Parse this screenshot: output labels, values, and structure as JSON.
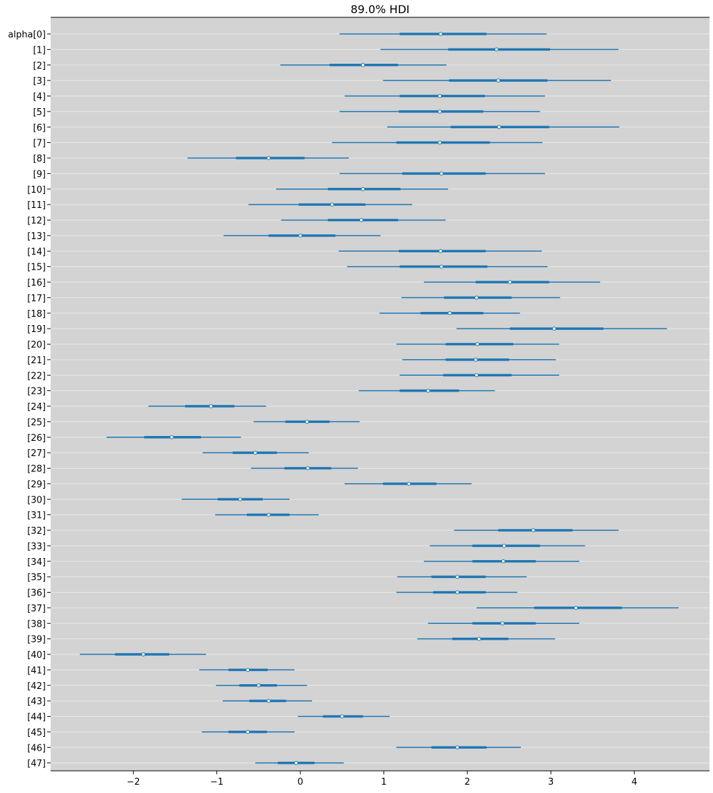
{
  "chart_data": {
    "type": "forest",
    "title": "89.0% HDI",
    "xlabel": "",
    "ylabel": "",
    "xlim": [
      -2.99,
      4.9
    ],
    "xticks": [
      -2,
      -1,
      0,
      1,
      2,
      3,
      4
    ],
    "xtick_labels": [
      "−2",
      "−1",
      "0",
      "1",
      "2",
      "3",
      "4"
    ],
    "grid": "horizontal",
    "legend": "none",
    "colors": {
      "plot_bg": "#d3d3d3",
      "hdi_line": "#1f77b4",
      "median_marker": "#ffffff",
      "grid": "#e8e8e8"
    },
    "rows": [
      {
        "label": "alpha[0]",
        "median": 1.68,
        "hdi_low": 0.47,
        "hdi_high": 2.95,
        "q25": 1.19,
        "q75": 2.23
      },
      {
        "label": "[1]",
        "median": 2.35,
        "hdi_low": 0.96,
        "hdi_high": 3.81,
        "q25": 1.77,
        "q75": 2.99
      },
      {
        "label": "[2]",
        "median": 0.75,
        "hdi_low": -0.24,
        "hdi_high": 1.75,
        "q25": 0.35,
        "q75": 1.17
      },
      {
        "label": "[3]",
        "median": 2.37,
        "hdi_low": 0.99,
        "hdi_high": 3.72,
        "q25": 1.78,
        "q75": 2.96
      },
      {
        "label": "[4]",
        "median": 1.67,
        "hdi_low": 0.53,
        "hdi_high": 2.93,
        "q25": 1.19,
        "q75": 2.21
      },
      {
        "label": "[5]",
        "median": 1.67,
        "hdi_low": 0.47,
        "hdi_high": 2.87,
        "q25": 1.18,
        "q75": 2.19
      },
      {
        "label": "[6]",
        "median": 2.38,
        "hdi_low": 1.04,
        "hdi_high": 3.82,
        "q25": 1.8,
        "q75": 2.98
      },
      {
        "label": "[7]",
        "median": 1.67,
        "hdi_low": 0.38,
        "hdi_high": 2.9,
        "q25": 1.15,
        "q75": 2.27
      },
      {
        "label": "[8]",
        "median": -0.38,
        "hdi_low": -1.35,
        "hdi_high": 0.58,
        "q25": -0.77,
        "q75": 0.05
      },
      {
        "label": "[9]",
        "median": 1.69,
        "hdi_low": 0.47,
        "hdi_high": 2.93,
        "q25": 1.22,
        "q75": 2.22
      },
      {
        "label": "[10]",
        "median": 0.75,
        "hdi_low": -0.29,
        "hdi_high": 1.77,
        "q25": 0.33,
        "q75": 1.2
      },
      {
        "label": "[11]",
        "median": 0.38,
        "hdi_low": -0.62,
        "hdi_high": 1.34,
        "q25": -0.02,
        "q75": 0.78
      },
      {
        "label": "[12]",
        "median": 0.73,
        "hdi_low": -0.23,
        "hdi_high": 1.74,
        "q25": 0.33,
        "q75": 1.17
      },
      {
        "label": "[13]",
        "median": 0.0,
        "hdi_low": -0.92,
        "hdi_high": 0.96,
        "q25": -0.38,
        "q75": 0.42
      },
      {
        "label": "[14]",
        "median": 1.68,
        "hdi_low": 0.46,
        "hdi_high": 2.89,
        "q25": 1.18,
        "q75": 2.22
      },
      {
        "label": "[15]",
        "median": 1.69,
        "hdi_low": 0.56,
        "hdi_high": 2.96,
        "q25": 1.19,
        "q75": 2.24
      },
      {
        "label": "[16]",
        "median": 2.51,
        "hdi_low": 1.48,
        "hdi_high": 3.59,
        "q25": 2.1,
        "q75": 2.98
      },
      {
        "label": "[17]",
        "median": 2.11,
        "hdi_low": 1.21,
        "hdi_high": 3.11,
        "q25": 1.72,
        "q75": 2.53
      },
      {
        "label": "[18]",
        "median": 1.79,
        "hdi_low": 0.95,
        "hdi_high": 2.63,
        "q25": 1.44,
        "q75": 2.19
      },
      {
        "label": "[19]",
        "median": 3.04,
        "hdi_low": 1.87,
        "hdi_high": 4.39,
        "q25": 2.51,
        "q75": 3.63
      },
      {
        "label": "[20]",
        "median": 2.12,
        "hdi_low": 1.15,
        "hdi_high": 3.1,
        "q25": 1.74,
        "q75": 2.55
      },
      {
        "label": "[21]",
        "median": 2.1,
        "hdi_low": 1.22,
        "hdi_high": 3.06,
        "q25": 1.74,
        "q75": 2.5
      },
      {
        "label": "[22]",
        "median": 2.11,
        "hdi_low": 1.19,
        "hdi_high": 3.1,
        "q25": 1.71,
        "q75": 2.53
      },
      {
        "label": "[23]",
        "median": 1.53,
        "hdi_low": 0.7,
        "hdi_high": 2.33,
        "q25": 1.19,
        "q75": 1.9
      },
      {
        "label": "[24]",
        "median": -1.07,
        "hdi_low": -1.82,
        "hdi_high": -0.41,
        "q25": -1.38,
        "q75": -0.79
      },
      {
        "label": "[25]",
        "median": 0.08,
        "hdi_low": -0.56,
        "hdi_high": 0.71,
        "q25": -0.18,
        "q75": 0.35
      },
      {
        "label": "[26]",
        "median": -1.54,
        "hdi_low": -2.32,
        "hdi_high": -0.71,
        "q25": -1.87,
        "q75": -1.19
      },
      {
        "label": "[27]",
        "median": -0.54,
        "hdi_low": -1.17,
        "hdi_high": 0.1,
        "q25": -0.81,
        "q75": -0.28
      },
      {
        "label": "[28]",
        "median": 0.09,
        "hdi_low": -0.59,
        "hdi_high": 0.69,
        "q25": -0.19,
        "q75": 0.37
      },
      {
        "label": "[29]",
        "median": 1.3,
        "hdi_low": 0.53,
        "hdi_high": 2.05,
        "q25": 0.99,
        "q75": 1.63
      },
      {
        "label": "[30]",
        "median": -0.72,
        "hdi_low": -1.42,
        "hdi_high": -0.13,
        "q25": -0.99,
        "q75": -0.45
      },
      {
        "label": "[31]",
        "median": -0.38,
        "hdi_low": -1.02,
        "hdi_high": 0.22,
        "q25": -0.64,
        "q75": -0.13
      },
      {
        "label": "[32]",
        "median": 2.79,
        "hdi_low": 1.84,
        "hdi_high": 3.81,
        "q25": 2.37,
        "q75": 3.26
      },
      {
        "label": "[33]",
        "median": 2.44,
        "hdi_low": 1.55,
        "hdi_high": 3.41,
        "q25": 2.06,
        "q75": 2.87
      },
      {
        "label": "[34]",
        "median": 2.43,
        "hdi_low": 1.48,
        "hdi_high": 3.34,
        "q25": 2.06,
        "q75": 2.82
      },
      {
        "label": "[35]",
        "median": 1.88,
        "hdi_low": 1.16,
        "hdi_high": 2.71,
        "q25": 1.57,
        "q75": 2.22
      },
      {
        "label": "[36]",
        "median": 1.88,
        "hdi_low": 1.15,
        "hdi_high": 2.6,
        "q25": 1.59,
        "q75": 2.22
      },
      {
        "label": "[37]",
        "median": 3.3,
        "hdi_low": 2.11,
        "hdi_high": 4.53,
        "q25": 2.8,
        "q75": 3.85
      },
      {
        "label": "[38]",
        "median": 2.42,
        "hdi_low": 1.53,
        "hdi_high": 3.34,
        "q25": 2.06,
        "q75": 2.82
      },
      {
        "label": "[39]",
        "median": 2.14,
        "hdi_low": 1.4,
        "hdi_high": 3.05,
        "q25": 1.82,
        "q75": 2.49
      },
      {
        "label": "[40]",
        "median": -1.88,
        "hdi_low": -2.64,
        "hdi_high": -1.13,
        "q25": -2.22,
        "q75": -1.57
      },
      {
        "label": "[41]",
        "median": -0.63,
        "hdi_low": -1.21,
        "hdi_high": -0.07,
        "q25": -0.86,
        "q75": -0.39
      },
      {
        "label": "[42]",
        "median": -0.5,
        "hdi_low": -1.01,
        "hdi_high": 0.08,
        "q25": -0.73,
        "q75": -0.28
      },
      {
        "label": "[43]",
        "median": -0.38,
        "hdi_low": -0.93,
        "hdi_high": 0.14,
        "q25": -0.61,
        "q75": -0.17
      },
      {
        "label": "[44]",
        "median": 0.5,
        "hdi_low": -0.03,
        "hdi_high": 1.07,
        "q25": 0.27,
        "q75": 0.75
      },
      {
        "label": "[45]",
        "median": -0.63,
        "hdi_low": -1.18,
        "hdi_high": -0.07,
        "q25": -0.86,
        "q75": -0.4
      },
      {
        "label": "[46]",
        "median": 1.88,
        "hdi_low": 1.15,
        "hdi_high": 2.64,
        "q25": 1.57,
        "q75": 2.23
      },
      {
        "label": "[47]",
        "median": -0.05,
        "hdi_low": -0.54,
        "hdi_high": 0.52,
        "q25": -0.27,
        "q75": 0.17
      }
    ]
  }
}
